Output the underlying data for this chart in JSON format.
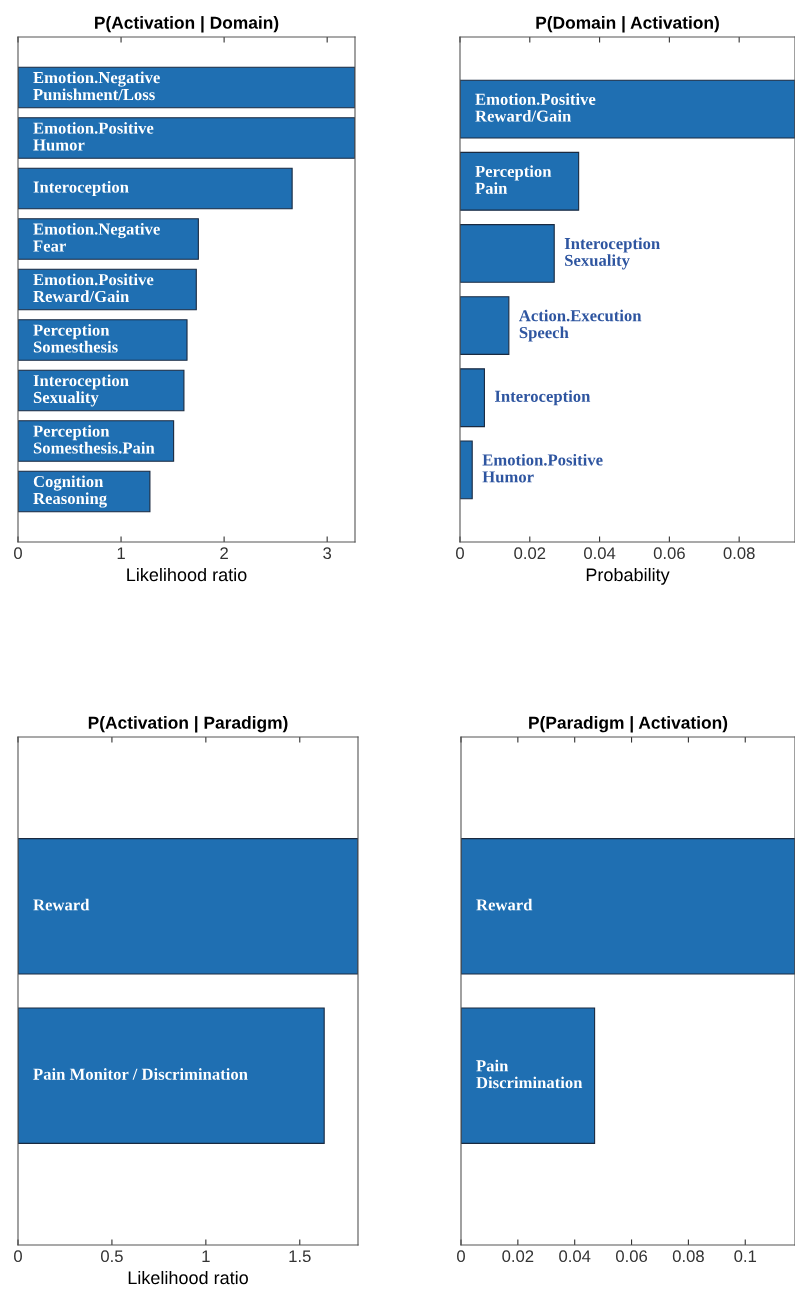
{
  "chart_data": [
    {
      "type": "bar",
      "orientation": "horizontal",
      "title": "P(Activation | Domain)",
      "xlabel": "Likelihood ratio",
      "color": "#1f6fb2",
      "tick_labels": "x",
      "categories": [
        "Emotion.Negative\nPunishment/Loss",
        "Emotion.Positive\nHumor",
        "Interoception",
        "Emotion.Negative\nFear",
        "Emotion.Positive\nReward/Gain",
        "Perception\nSomesthesis",
        "Interoception\nSexuality",
        "Perception\nSomesthesis.Pain",
        "Cognition\nReasoning"
      ],
      "values": [
        3.27,
        3.27,
        2.66,
        1.75,
        1.73,
        1.64,
        1.61,
        1.51,
        1.28
      ],
      "xlim": [
        0,
        3.27
      ],
      "xticks": [
        0,
        1,
        2,
        3
      ]
    },
    {
      "type": "bar",
      "orientation": "horizontal",
      "title": "P(Domain | Activation)",
      "xlabel": "Probability",
      "color": "#1f6fb2",
      "tick_labels": "x",
      "categories": [
        "Emotion.Positive\nReward/Gain",
        "Perception\nPain",
        "Interoception\nSexuality",
        "Action.Execution\nSpeech",
        "Interoception",
        "Emotion.Positive\nHumor"
      ],
      "values": [
        0.096,
        0.034,
        0.027,
        0.014,
        0.007,
        0.0035
      ],
      "xlim": [
        0,
        0.096
      ],
      "xticks": [
        0,
        0.02,
        0.04,
        0.06,
        0.08
      ]
    },
    {
      "type": "bar",
      "orientation": "horizontal",
      "title": "P(Activation | Paradigm)",
      "xlabel": "Likelihood ratio",
      "color": "#1f6fb2",
      "tick_labels": "x",
      "categories": [
        "Reward",
        "Pain Monitor / Discrimination"
      ],
      "values": [
        1.81,
        1.63
      ],
      "xlim": [
        0,
        1.81
      ],
      "xticks": [
        0,
        0.5,
        1,
        1.5
      ]
    },
    {
      "type": "bar",
      "orientation": "horizontal",
      "title": "P(Paradigm | Activation)",
      "color": "#1f6fb2",
      "tick_labels": "x",
      "categories": [
        "Reward",
        "Pain\nDiscrimination"
      ],
      "values": [
        0.1175,
        0.047
      ],
      "xlim": [
        0,
        0.1175
      ],
      "xticks": [
        0,
        0.02,
        0.04,
        0.06,
        0.08,
        0.1
      ]
    }
  ]
}
